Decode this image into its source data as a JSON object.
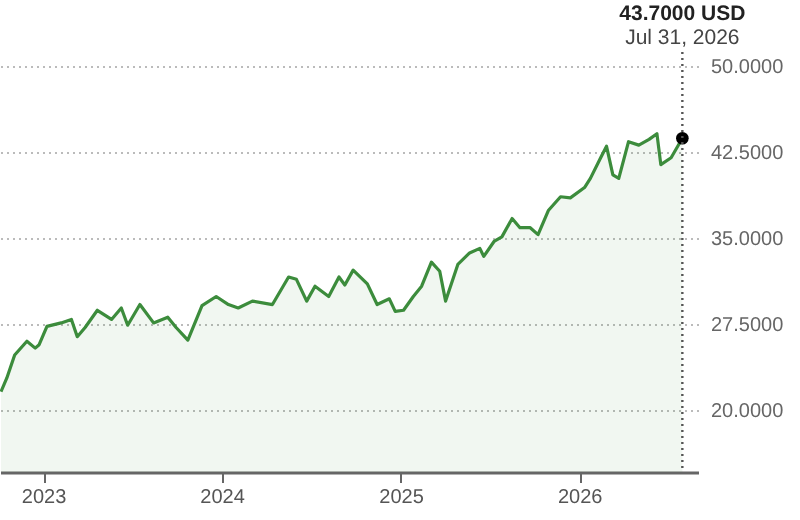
{
  "chart_data": {
    "type": "area",
    "x": [
      "2022-10-07",
      "2022-10-19",
      "2022-11-04",
      "2022-11-29",
      "2022-12-16",
      "2022-12-24",
      "2023-01-09",
      "2023-02-07",
      "2023-02-28",
      "2023-03-12",
      "2023-03-28",
      "2023-04-22",
      "2023-05-21",
      "2023-06-10",
      "2023-06-23",
      "2023-07-18",
      "2023-08-15",
      "2023-09-13",
      "2023-09-30",
      "2023-10-24",
      "2023-11-22",
      "2023-12-21",
      "2024-01-15",
      "2024-02-04",
      "2024-03-04",
      "2024-04-14",
      "2024-05-17",
      "2024-06-02",
      "2024-06-23",
      "2024-07-10",
      "2024-08-07",
      "2024-08-28",
      "2024-09-09",
      "2024-09-26",
      "2024-10-25",
      "2024-11-14",
      "2024-12-09",
      "2024-12-21",
      "2025-01-07",
      "2025-01-27",
      "2025-02-13",
      "2025-03-05",
      "2025-03-22",
      "2025-04-03",
      "2025-04-28",
      "2025-05-22",
      "2025-06-12",
      "2025-06-20",
      "2025-07-11",
      "2025-07-27",
      "2025-08-17",
      "2025-09-02",
      "2025-09-23",
      "2025-10-09",
      "2025-10-30",
      "2025-11-24",
      "2025-12-14",
      "2026-01-12",
      "2026-01-24",
      "2026-02-14",
      "2026-02-26",
      "2026-03-11",
      "2026-03-23",
      "2026-04-12",
      "2026-05-03",
      "2026-05-24",
      "2026-06-09",
      "2026-06-17",
      "2026-07-08",
      "2026-07-31"
    ],
    "series": [
      {
        "color": "#3c8c3c",
        "values": [
          21.6,
          22.8,
          24.8,
          26.0,
          25.4,
          25.7,
          27.3,
          27.6,
          27.9,
          26.4,
          27.2,
          28.7,
          27.9,
          28.9,
          27.4,
          29.2,
          27.6,
          28.1,
          27.2,
          26.1,
          29.1,
          29.9,
          29.2,
          28.9,
          29.5,
          29.2,
          31.6,
          31.4,
          29.5,
          30.8,
          29.9,
          31.6,
          30.9,
          32.2,
          31.0,
          29.2,
          29.7,
          28.6,
          28.7,
          29.9,
          30.8,
          32.9,
          32.1,
          29.5,
          32.7,
          33.7,
          34.1,
          33.4,
          34.7,
          35.1,
          36.7,
          35.9,
          35.9,
          35.3,
          37.4,
          38.6,
          38.5,
          39.4,
          40.2,
          42.0,
          43.0,
          40.5,
          40.2,
          43.4,
          43.1,
          43.6,
          44.1,
          41.4,
          42.0,
          43.7
        ]
      },
      {
        "type": "scatter",
        "x": [
          "2026-07-31"
        ],
        "color": "#000000",
        "values": [
          43.7
        ]
      }
    ],
    "xlim": [
      "2022-10-05",
      "2026-09-01"
    ],
    "xticks": [
      {
        "value": "2023-01-01",
        "label": "2023"
      },
      {
        "value": "2024-01-01",
        "label": "2024"
      },
      {
        "value": "2025-01-01",
        "label": "2025"
      },
      {
        "value": "2026-01-01",
        "label": "2026"
      }
    ],
    "ylim": [
      14.6,
      50
    ],
    "yticks": [
      {
        "value": 20,
        "label": "20.0000"
      },
      {
        "value": 27.5,
        "label": "27.5000"
      },
      {
        "value": 35,
        "label": "35.0000"
      },
      {
        "value": 42.5,
        "label": "42.5000"
      },
      {
        "value": 50,
        "label": "50.0000"
      }
    ],
    "grid": "y",
    "ref_lines": [
      {
        "axis": "x",
        "value": "2026-07-31",
        "line_style": "dotted",
        "color": "#555555"
      }
    ],
    "annotations": [
      "43.7000 USD",
      "Jul 31, 2026"
    ]
  }
}
